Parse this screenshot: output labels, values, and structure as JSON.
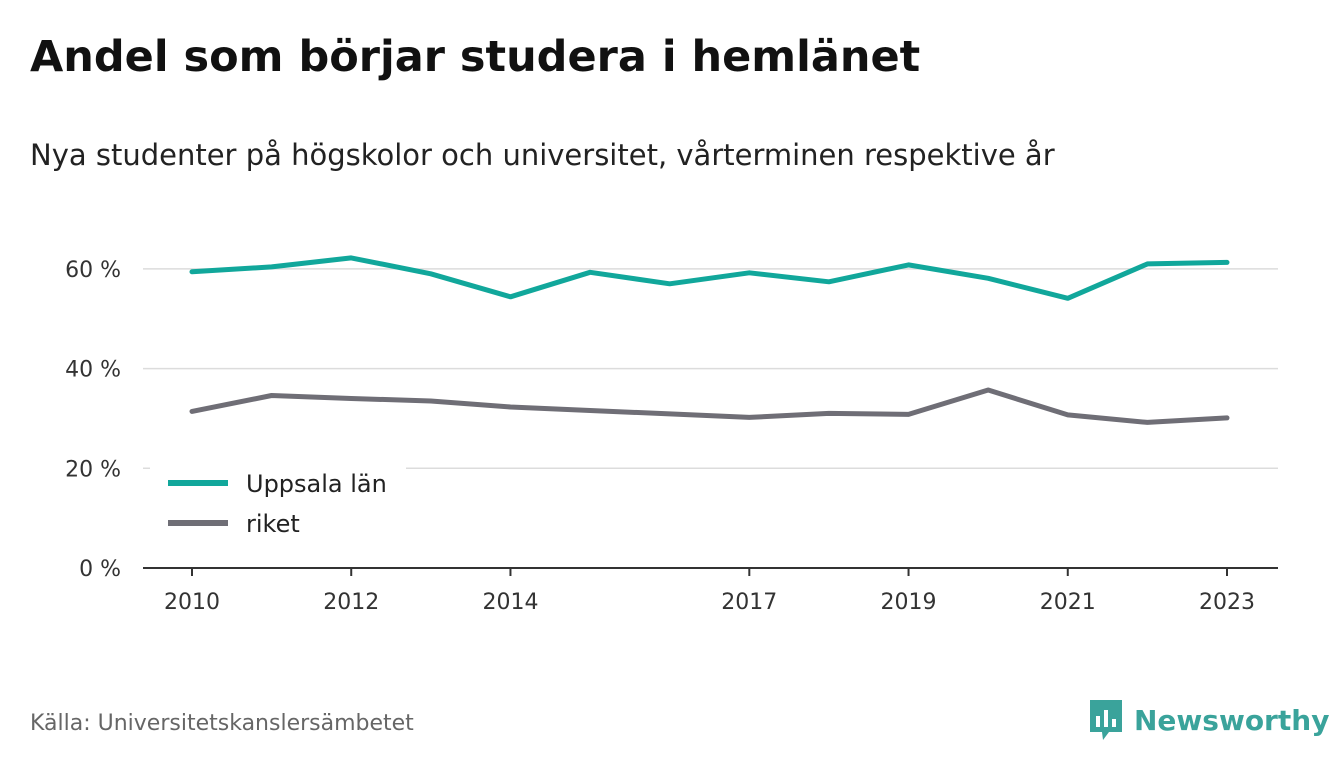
{
  "header": {
    "title": "Andel som börjar studera i hemlänet",
    "subtitle": "Nya studenter på högskolor och universitet, vårterminen respektive år"
  },
  "footer": {
    "source": "Källa: Universitetskanslersämbetet",
    "brand": "Newsworthy",
    "brand_icon": "bar-chart-speech-bubble-icon",
    "brand_color": "#3aa39b"
  },
  "chart_data": {
    "type": "line",
    "x": [
      2010,
      2011,
      2012,
      2013,
      2014,
      2015,
      2016,
      2017,
      2018,
      2019,
      2020,
      2021,
      2022,
      2023
    ],
    "x_tick_labels": [
      "2010",
      "2012",
      "2014",
      "2017",
      "2019",
      "2021",
      "2023"
    ],
    "y_ticks": [
      {
        "value": 0,
        "label": "0 %"
      },
      {
        "value": 20,
        "label": "20 %"
      },
      {
        "value": 40,
        "label": "40 %"
      },
      {
        "value": 60,
        "label": "60 %"
      }
    ],
    "ylim": [
      0,
      70
    ],
    "grid": true,
    "legend_position": "bottom-left",
    "series": [
      {
        "name": "Uppsala län",
        "color": "#11a79b",
        "values": [
          59.4,
          60.4,
          62.2,
          59.0,
          54.4,
          59.3,
          57.0,
          59.2,
          57.4,
          60.8,
          58.1,
          54.1,
          61.0,
          61.3
        ]
      },
      {
        "name": "riket",
        "color": "#6f6e76",
        "values": [
          31.4,
          34.6,
          34.0,
          33.5,
          32.3,
          31.6,
          30.9,
          30.2,
          31.0,
          30.8,
          35.7,
          30.7,
          29.2,
          30.1
        ]
      }
    ]
  }
}
